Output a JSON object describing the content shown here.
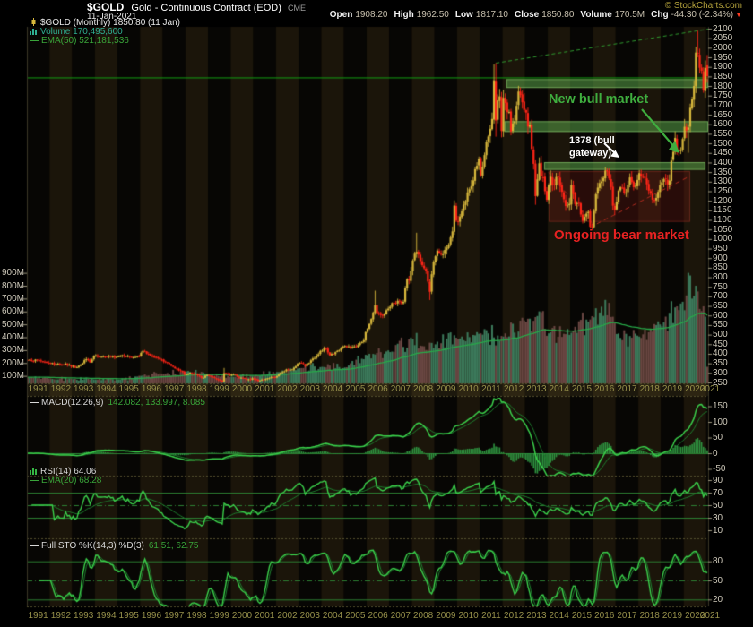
{
  "header": {
    "symbol": "$GOLD",
    "title": "Gold - Continuous Contract (EOD)",
    "exchange": "CME",
    "date": "11-Jan-2021",
    "copyright": "© StockCharts.com",
    "quote": [
      {
        "label": "Open",
        "value": "1908.20"
      },
      {
        "label": "High",
        "value": "1962.50"
      },
      {
        "label": "Low",
        "value": "1817.10"
      },
      {
        "label": "Close",
        "value": "1850.80"
      },
      {
        "label": "Volume",
        "value": "170.5M"
      },
      {
        "label": "Chg",
        "value": "-44.30 (-2.34%)",
        "arrow": "down"
      }
    ]
  },
  "legend": {
    "price_line": "$GOLD (Monthly) 1850.80 (11 Jan)",
    "volume_line": "Volume 170,495,600",
    "ema_line": "EMA(50) 521,181,536"
  },
  "panels": {
    "macd": {
      "label": "MACD(12,26,9)",
      "values": "142.082, 133.997, 8.085"
    },
    "rsi": {
      "label": "RSI(14) 64.06",
      "ema_label": "EMA(20) 68.28"
    },
    "sto": {
      "label": "Full STO %K(14,3) %D(3)",
      "values": "61.51, 62.75"
    }
  },
  "annotations": {
    "new_bull": "New bull market",
    "gateway_line1": "1378 (bull",
    "gateway_line2": "gateway)",
    "bear": "Ongoing bear market"
  },
  "axes": {
    "price_ticks": [
      2100,
      2050,
      2000,
      1950,
      1900,
      1850,
      1800,
      1750,
      1700,
      1650,
      1600,
      1550,
      1500,
      1450,
      1400,
      1350,
      1300,
      1250,
      1200,
      1150,
      1100,
      1050,
      1000,
      950,
      900,
      850,
      800,
      750,
      700,
      650,
      600,
      550,
      500,
      450,
      400,
      350,
      300,
      250
    ],
    "volume_ticks": [
      "900M",
      "800M",
      "700M",
      "600M",
      "500M",
      "400M",
      "300M",
      "200M",
      "100M"
    ],
    "years": [
      "1991",
      "1992",
      "1993",
      "1994",
      "1995",
      "1996",
      "1997",
      "1998",
      "1999",
      "2000",
      "2001",
      "2002",
      "2003",
      "2004",
      "2005",
      "2006",
      "2007",
      "2008",
      "2009",
      "2010",
      "2011",
      "2012",
      "2013",
      "2014",
      "2015",
      "2016",
      "2017",
      "2018",
      "2019",
      "2020",
      "2021"
    ]
  },
  "colors": {
    "candle_up": "#d8b83c",
    "candle_down": "#ff2517",
    "vol_up": "#3c7a5b",
    "vol_down": "#6b4743",
    "vol_ema": "#27aa49",
    "indicator_bright": "#3bd14b",
    "indicator_dim": "#1d7f2e",
    "histogram": "#2e9440",
    "level_line": "#2c8032",
    "band_fill": "rgba(95,175,78,0.5)",
    "band_edge": "rgba(150,215,120,0.55)",
    "bear_fill": "rgba(120,25,22,0.30)",
    "bear_edge": "rgba(170,60,45,0.4)",
    "bear_line": "#b02a1e",
    "bull_trend": "#2f9b2f",
    "hline_green": "#12a012",
    "accent_green": "#3fae3f",
    "accent_red": "#e82222",
    "stripe_light": "#1b150a",
    "stripe_dark": "#070604"
  },
  "chart_data": {
    "type": "candlestick",
    "symbol": "$GOLD",
    "timeframe": "monthly",
    "x_unit": "months since 1991-01",
    "x_start": "1991-01",
    "x_end": "2021-01",
    "months": 361,
    "price_axis": {
      "min": 250,
      "max": 2100,
      "tick": 50
    },
    "volume_axis": {
      "max_millions": 900,
      "tick_millions": 100
    },
    "close_anchors": [
      [
        0,
        366
      ],
      [
        5,
        367
      ],
      [
        11,
        353
      ],
      [
        14,
        344
      ],
      [
        17,
        343
      ],
      [
        20,
        349
      ],
      [
        23,
        333
      ],
      [
        26,
        329
      ],
      [
        31,
        372
      ],
      [
        33,
        355
      ],
      [
        35,
        390
      ],
      [
        38,
        384
      ],
      [
        43,
        388
      ],
      [
        47,
        383
      ],
      [
        50,
        392
      ],
      [
        54,
        384
      ],
      [
        59,
        387
      ],
      [
        61,
        415
      ],
      [
        66,
        385
      ],
      [
        71,
        369
      ],
      [
        74,
        352
      ],
      [
        78,
        324
      ],
      [
        82,
        307
      ],
      [
        83,
        290
      ],
      [
        86,
        301
      ],
      [
        89,
        296
      ],
      [
        92,
        273
      ],
      [
        95,
        288
      ],
      [
        98,
        280
      ],
      [
        103,
        255
      ],
      [
        104,
        299
      ],
      [
        107,
        288
      ],
      [
        109,
        294
      ],
      [
        112,
        275
      ],
      [
        118,
        264
      ],
      [
        119,
        272
      ],
      [
        122,
        258
      ],
      [
        124,
        265
      ],
      [
        127,
        272
      ],
      [
        129,
        278
      ],
      [
        131,
        276
      ],
      [
        134,
        301
      ],
      [
        137,
        318
      ],
      [
        140,
        318
      ],
      [
        143,
        348
      ],
      [
        145,
        350
      ],
      [
        147,
        336
      ],
      [
        151,
        375
      ],
      [
        154,
        398
      ],
      [
        155,
        415
      ],
      [
        158,
        428
      ],
      [
        160,
        393
      ],
      [
        164,
        415
      ],
      [
        167,
        438
      ],
      [
        169,
        435
      ],
      [
        171,
        429
      ],
      [
        175,
        445
      ],
      [
        178,
        470
      ],
      [
        179,
        513
      ],
      [
        181,
        556
      ],
      [
        184,
        653
      ],
      [
        185,
        613
      ],
      [
        188,
        599
      ],
      [
        191,
        636
      ],
      [
        193,
        665
      ],
      [
        196,
        677
      ],
      [
        199,
        672
      ],
      [
        200,
        743
      ],
      [
        201,
        789
      ],
      [
        202,
        783
      ],
      [
        203,
        833
      ],
      [
        205,
        923
      ],
      [
        206,
        933
      ],
      [
        208,
        885
      ],
      [
        211,
        833
      ],
      [
        213,
        724
      ],
      [
        214,
        816
      ],
      [
        215,
        880
      ],
      [
        217,
        940
      ],
      [
        219,
        920
      ],
      [
        222,
        955
      ],
      [
        224,
        1008
      ],
      [
        225,
        1040
      ],
      [
        226,
        1175
      ],
      [
        227,
        1096
      ],
      [
        229,
        1118
      ],
      [
        231,
        1180
      ],
      [
        233,
        1244
      ],
      [
        236,
        1307
      ],
      [
        238,
        1383
      ],
      [
        239,
        1421
      ],
      [
        240,
        1333
      ],
      [
        242,
        1439
      ],
      [
        244,
        1536
      ],
      [
        246,
        1628
      ],
      [
        247,
        1830
      ],
      [
        248,
        1620
      ],
      [
        249,
        1725
      ],
      [
        250,
        1746
      ],
      [
        251,
        1565
      ],
      [
        252,
        1738
      ],
      [
        253,
        1711
      ],
      [
        255,
        1664
      ],
      [
        256,
        1562
      ],
      [
        258,
        1615
      ],
      [
        260,
        1771
      ],
      [
        262,
        1715
      ],
      [
        263,
        1675
      ],
      [
        264,
        1661
      ],
      [
        265,
        1588
      ],
      [
        266,
        1596
      ],
      [
        267,
        1472
      ],
      [
        268,
        1393
      ],
      [
        269,
        1224
      ],
      [
        270,
        1312
      ],
      [
        271,
        1396
      ],
      [
        272,
        1327
      ],
      [
        273,
        1323
      ],
      [
        274,
        1250
      ],
      [
        275,
        1205
      ],
      [
        277,
        1326
      ],
      [
        278,
        1284
      ],
      [
        281,
        1322
      ],
      [
        284,
        1208
      ],
      [
        285,
        1173
      ],
      [
        286,
        1175
      ],
      [
        287,
        1184
      ],
      [
        288,
        1283
      ],
      [
        290,
        1183
      ],
      [
        292,
        1189
      ],
      [
        294,
        1095
      ],
      [
        297,
        1142
      ],
      [
        298,
        1065
      ],
      [
        299,
        1060
      ],
      [
        301,
        1234
      ],
      [
        303,
        1293
      ],
      [
        305,
        1320
      ],
      [
        306,
        1358
      ],
      [
        308,
        1317
      ],
      [
        309,
        1272
      ],
      [
        310,
        1174
      ],
      [
        311,
        1152
      ],
      [
        313,
        1253
      ],
      [
        315,
        1268
      ],
      [
        317,
        1242
      ],
      [
        319,
        1322
      ],
      [
        321,
        1271
      ],
      [
        323,
        1309
      ],
      [
        324,
        1345
      ],
      [
        326,
        1325
      ],
      [
        327,
        1319
      ],
      [
        329,
        1253
      ],
      [
        331,
        1206
      ],
      [
        333,
        1215
      ],
      [
        335,
        1281
      ],
      [
        337,
        1313
      ],
      [
        339,
        1286
      ],
      [
        340,
        1306
      ],
      [
        341,
        1410
      ],
      [
        343,
        1529
      ],
      [
        344,
        1472
      ],
      [
        346,
        1464
      ],
      [
        347,
        1523
      ],
      [
        348,
        1587
      ],
      [
        349,
        1567
      ],
      [
        350,
        1583
      ],
      [
        351,
        1686
      ],
      [
        352,
        1730
      ],
      [
        353,
        1800
      ],
      [
        354,
        1975
      ],
      [
        355,
        1968
      ],
      [
        356,
        1895
      ],
      [
        357,
        1879
      ],
      [
        358,
        1777
      ],
      [
        359,
        1895
      ],
      [
        360,
        1850.8
      ]
    ],
    "ohlc_overrides": {
      "104": [
        null,
        326,
        null,
        null
      ],
      "184": [
        null,
        730,
        null,
        null
      ],
      "206": [
        null,
        1033,
        null,
        null
      ],
      "213": [
        null,
        null,
        681,
        null
      ],
      "247": [
        null,
        1913,
        null,
        null
      ],
      "248": [
        null,
        1920,
        1535,
        null
      ],
      "269": [
        null,
        null,
        1179,
        null
      ],
      "299": [
        null,
        null,
        1045,
        null
      ],
      "306": [
        null,
        1377.5,
        null,
        null
      ],
      "350": [
        null,
        null,
        1451,
        null
      ],
      "354": [
        null,
        2005,
        null,
        null
      ],
      "355": [
        null,
        2089.2,
        null,
        null
      ],
      "360": [
        1908.2,
        1962.5,
        1817.1,
        1850.8
      ]
    },
    "volume_anchors_millions": [
      [
        0,
        90
      ],
      [
        12,
        80
      ],
      [
        24,
        75
      ],
      [
        36,
        72
      ],
      [
        48,
        70
      ],
      [
        60,
        100
      ],
      [
        72,
        115
      ],
      [
        84,
        135
      ],
      [
        96,
        110
      ],
      [
        108,
        95
      ],
      [
        120,
        100
      ],
      [
        132,
        130
      ],
      [
        144,
        160
      ],
      [
        156,
        170
      ],
      [
        168,
        165
      ],
      [
        180,
        260
      ],
      [
        192,
        285
      ],
      [
        204,
        385
      ],
      [
        210,
        330
      ],
      [
        216,
        345
      ],
      [
        228,
        385
      ],
      [
        240,
        430
      ],
      [
        252,
        405
      ],
      [
        264,
        520
      ],
      [
        270,
        565
      ],
      [
        276,
        430
      ],
      [
        288,
        435
      ],
      [
        300,
        555
      ],
      [
        306,
        650
      ],
      [
        312,
        425
      ],
      [
        324,
        405
      ],
      [
        336,
        485
      ],
      [
        344,
        620
      ],
      [
        348,
        610
      ],
      [
        350,
        880
      ],
      [
        352,
        700
      ],
      [
        354,
        800
      ],
      [
        356,
        620
      ],
      [
        358,
        640
      ],
      [
        359,
        560
      ],
      [
        360,
        170.5
      ]
    ],
    "volume_overrides": {
      "306": 690,
      "344": 640,
      "350": 900,
      "360": 170.5
    },
    "indicators": {
      "volume_ema_period": 50,
      "volume_ema_last": 521181536,
      "macd": {
        "fast": 12,
        "slow": 26,
        "signal": 9,
        "last": [
          142.082,
          133.997,
          8.085
        ],
        "ticks": [
          150,
          100,
          50,
          0,
          -50
        ],
        "zero_line": 0
      },
      "rsi": {
        "period": 14,
        "last": 64.06,
        "ema_period": 20,
        "ema_last": 68.28,
        "ticks": [
          90,
          70,
          50,
          30,
          10
        ],
        "levels_solid": [
          70,
          30
        ],
        "level_dashdot": 50
      },
      "sto": {
        "k_params": "14,3",
        "d_param": "3",
        "last_k": 61.51,
        "last_d": 62.75,
        "ticks": [
          80,
          50,
          20
        ],
        "levels_solid": [
          80,
          20
        ],
        "level_dashdot": 50
      }
    },
    "drawn_annotations": {
      "hline_price": 1845,
      "bands": [
        {
          "from_month": 254,
          "to_month": 361,
          "price_low": 1790,
          "price_high": 1836
        },
        {
          "from_month": 253,
          "to_month": 361,
          "price_low": 1560,
          "price_high": 1616
        },
        {
          "from_month": 274,
          "to_month": 359,
          "price_low": 1362,
          "price_high": 1402
        }
      ],
      "bear_box": {
        "from_month": 276,
        "to_month": 351,
        "price_low": 1090,
        "price_high": 1355
      },
      "bear_trendline": [
        [
          276,
          1348
        ],
        [
          300,
          1072
        ],
        [
          351,
          1330
        ]
      ],
      "bull_trendline": [
        [
          248,
          1920
        ],
        [
          355,
          2089
        ]
      ]
    }
  }
}
